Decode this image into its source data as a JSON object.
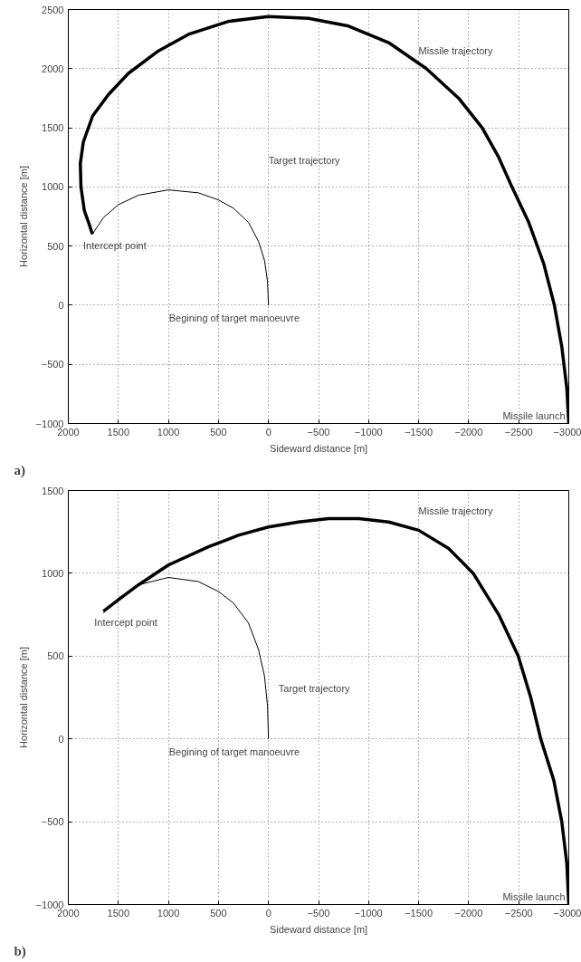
{
  "chart_data": [
    {
      "type": "line",
      "xlabel": "Sideward distance [m]",
      "ylabel": "Horizontal distance [m]",
      "xlim": [
        2000,
        -3000
      ],
      "ylim": [
        -1000,
        2500
      ],
      "xticks": [
        2000,
        1500,
        1000,
        500,
        0,
        -500,
        -1000,
        -1500,
        -2000,
        -2500,
        -3000
      ],
      "yticks": [
        -1000,
        -500,
        0,
        500,
        1000,
        1500,
        2000,
        2500
      ],
      "grid": true,
      "line_style": "solid",
      "marker": "none",
      "series": [
        {
          "color": "#000000",
          "x": [
            -3000,
            -2980,
            -2930,
            -2856,
            -2750,
            -2600,
            -2432,
            -2300,
            -2135,
            -1900,
            -1577,
            -1200,
            -800,
            -400,
            0,
            400,
            800,
            1100,
            1400,
            1600,
            1757,
            1850,
            1880,
            1874,
            1840,
            1790,
            1760
          ],
          "values": [
            -1000,
            -700,
            -350,
            0,
            350,
            700,
            1000,
            1250,
            1500,
            1750,
            2000,
            2220,
            2360,
            2425,
            2440,
            2400,
            2290,
            2150,
            1960,
            1780,
            1600,
            1380,
            1200,
            1000,
            800,
            680,
            600
          ]
        },
        {
          "color": "#000000",
          "x": [
            0,
            10,
            40,
            100,
            200,
            350,
            500,
            700,
            1000,
            1300,
            1500,
            1650,
            1760
          ],
          "values": [
            0,
            200,
            380,
            540,
            700,
            820,
            890,
            950,
            975,
            930,
            850,
            740,
            600
          ]
        }
      ],
      "annotations": [
        "Missile trajectory",
        "Target trajectory",
        {
          "text": "Intercept point",
          "x": 1760,
          "y": 600
        },
        {
          "text": "Begining of target manoeuvre",
          "x": 0,
          "y": 0
        },
        {
          "text": "Missile launch",
          "x": -3000,
          "y": -1000
        },
        "a)"
      ]
    },
    {
      "type": "line",
      "xlabel": "Sideward distance [m]",
      "ylabel": "Horizontal distance [m]",
      "xlim": [
        2000,
        -3000
      ],
      "ylim": [
        -1000,
        1500
      ],
      "xticks": [
        2000,
        1500,
        1000,
        500,
        0,
        -500,
        -1000,
        -1500,
        -2000,
        -2500,
        -3000
      ],
      "yticks": [
        -1000,
        -500,
        0,
        500,
        1000,
        1500
      ],
      "grid": true,
      "line_style": "solid",
      "marker": "none",
      "series": [
        {
          "color": "#000000",
          "x": [
            -3000,
            -2980,
            -2930,
            -2850,
            -2720,
            -2620,
            -2495,
            -2300,
            -2045,
            -1800,
            -1500,
            -1200,
            -900,
            -600,
            -300,
            0,
            300,
            600,
            1000,
            1300,
            1500,
            1650
          ],
          "values": [
            -1000,
            -750,
            -500,
            -250,
            0,
            250,
            500,
            750,
            1000,
            1150,
            1260,
            1310,
            1330,
            1330,
            1310,
            1280,
            1230,
            1160,
            1050,
            930,
            840,
            770
          ]
        },
        {
          "color": "#000000",
          "x": [
            0,
            10,
            40,
            100,
            200,
            350,
            500,
            700,
            1000,
            1300,
            1500,
            1650
          ],
          "values": [
            0,
            200,
            380,
            540,
            700,
            820,
            890,
            950,
            975,
            930,
            850,
            760
          ]
        }
      ],
      "annotations": [
        "Missile trajectory",
        "Target trajectory",
        {
          "text": "Intercept point",
          "x": 1650,
          "y": 770
        },
        {
          "text": "Begining of target manoeuvre",
          "x": 0,
          "y": 0
        },
        {
          "text": "Missile launch",
          "x": -3000,
          "y": -1000
        },
        "b)"
      ]
    }
  ]
}
